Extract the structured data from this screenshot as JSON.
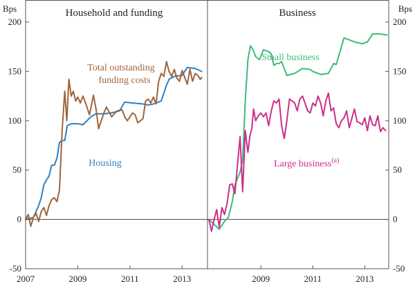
{
  "chart_data": {
    "type": "line",
    "y_unit": "Bps",
    "ylim": [
      -50,
      200
    ],
    "yticks": [
      -50,
      0,
      50,
      100,
      150,
      200
    ],
    "colors": {
      "housing": "#2e7fc4",
      "funding": "#a0643a",
      "small": "#3dbb7a",
      "large": "#cc2f8a",
      "zero": "#444444",
      "frame": "#555555"
    },
    "panels": [
      {
        "id": "left",
        "title": "Household and funding",
        "xlim": [
          2007.0,
          2013.92
        ],
        "xticks": [
          2007,
          2009,
          2011,
          2013
        ],
        "xtick_labels": [
          "2007",
          "2009",
          "2011",
          "2013"
        ],
        "series": [
          {
            "name": "Housing",
            "key": "housing",
            "label": "Housing",
            "x": [
              2007.0,
              2007.3,
              2007.4,
              2007.5,
              2007.6,
              2007.7,
              2007.8,
              2007.9,
              2008.0,
              2008.1,
              2008.2,
              2008.3,
              2008.4,
              2008.5,
              2008.6,
              2008.75,
              2009.0,
              2009.2,
              2009.5,
              2009.7,
              2010.0,
              2010.3,
              2010.6,
              2010.8,
              2011.1,
              2011.5,
              2011.7,
              2011.9,
              2012.2,
              2012.4,
              2012.5,
              2012.7,
              2013.0,
              2013.2,
              2013.5,
              2013.75
            ],
            "y": [
              0,
              2,
              8,
              14,
              22,
              35,
              40,
              44,
              55,
              55,
              62,
              78,
              80,
              80,
              95,
              97,
              97,
              96,
              104,
              107,
              107,
              108,
              110,
              119,
              118,
              117,
              116,
              117,
              120,
              136,
              142,
              145,
              146,
              154,
              153,
              150
            ]
          },
          {
            "name": "Total outstanding funding costs",
            "key": "funding",
            "label_lines": [
              "Total outstanding",
              "funding costs"
            ],
            "x": [
              2007.0,
              2007.1,
              2007.2,
              2007.3,
              2007.4,
              2007.5,
              2007.6,
              2007.7,
              2007.8,
              2007.9,
              2008.0,
              2008.1,
              2008.2,
              2008.3,
              2008.4,
              2008.5,
              2008.58,
              2008.66,
              2008.75,
              2008.83,
              2008.92,
              2009.0,
              2009.1,
              2009.2,
              2009.3,
              2009.45,
              2009.6,
              2009.7,
              2009.8,
              2009.9,
              2010.0,
              2010.1,
              2010.3,
              2010.5,
              2010.7,
              2010.8,
              2010.9,
              2011.0,
              2011.1,
              2011.2,
              2011.3,
              2011.5,
              2011.6,
              2011.7,
              2011.8,
              2011.9,
              2012.0,
              2012.1,
              2012.2,
              2012.3,
              2012.4,
              2012.5,
              2012.6,
              2012.7,
              2012.8,
              2012.9,
              2013.0,
              2013.1,
              2013.2,
              2013.3,
              2013.4,
              2013.5,
              2013.6,
              2013.7,
              2013.75
            ],
            "y": [
              0,
              5,
              -7,
              2,
              6,
              -2,
              8,
              12,
              4,
              14,
              20,
              22,
              18,
              30,
              90,
              130,
              100,
              142,
              125,
              130,
              120,
              124,
              118,
              125,
              118,
              106,
              126,
              112,
              92,
              100,
              108,
              114,
              104,
              110,
              111,
              104,
              100,
              104,
              108,
              106,
              98,
              102,
              120,
              122,
              118,
              124,
              117,
              140,
              148,
              145,
              160,
              150,
              145,
              152,
              143,
              140,
              151,
              144,
              137,
              152,
              140,
              148,
              146,
              142,
              144
            ]
          }
        ]
      },
      {
        "id": "right",
        "title": "Business",
        "xlim": [
          2007.0,
          2013.92
        ],
        "xticks": [
          2009,
          2011,
          2013
        ],
        "xtick_labels": [
          "2009",
          "2011",
          "2013"
        ],
        "series": [
          {
            "name": "Small business",
            "key": "small",
            "label": "Small business",
            "x": [
              2007.0,
              2007.2,
              2007.4,
              2007.6,
              2007.75,
              2007.9,
              2008.0,
              2008.2,
              2008.3,
              2008.4,
              2008.5,
              2008.6,
              2008.7,
              2008.8,
              2008.95,
              2009.1,
              2009.3,
              2009.4,
              2009.5,
              2009.6,
              2009.7,
              2009.8,
              2010.0,
              2010.3,
              2010.6,
              2010.9,
              2011.0,
              2011.3,
              2011.6,
              2011.8,
              2011.9,
              2012.2,
              2012.4,
              2012.6,
              2012.9,
              2013.1,
              2013.3,
              2013.6,
              2013.85
            ],
            "y": [
              0,
              -5,
              -10,
              -2,
              2,
              18,
              35,
              48,
              60,
              120,
              162,
              176,
              172,
              165,
              162,
              172,
              170,
              168,
              156,
              158,
              158,
              160,
              146,
              148,
              153,
              152,
              150,
              147,
              148,
              158,
              157,
              184,
              182,
              180,
              178,
              180,
              188,
              188,
              187
            ]
          },
          {
            "name": "Large business",
            "key": "large",
            "label": "Large business",
            "label_sup": "(a)",
            "x": [
              2007.0,
              2007.1,
              2007.2,
              2007.3,
              2007.4,
              2007.5,
              2007.6,
              2007.7,
              2007.8,
              2007.9,
              2008.0,
              2008.2,
              2008.3,
              2008.4,
              2008.5,
              2008.58,
              2008.65,
              2008.72,
              2008.8,
              2008.9,
              2009.0,
              2009.1,
              2009.2,
              2009.3,
              2009.4,
              2009.5,
              2009.6,
              2009.7,
              2009.8,
              2009.9,
              2010.0,
              2010.1,
              2010.2,
              2010.3,
              2010.4,
              2010.5,
              2010.6,
              2010.7,
              2010.8,
              2010.9,
              2011.0,
              2011.1,
              2011.2,
              2011.3,
              2011.4,
              2011.5,
              2011.6,
              2011.7,
              2011.8,
              2011.9,
              2012.0,
              2012.1,
              2012.2,
              2012.3,
              2012.4,
              2012.5,
              2012.6,
              2012.7,
              2012.8,
              2012.9,
              2013.0,
              2013.1,
              2013.2,
              2013.3,
              2013.4,
              2013.5,
              2013.6,
              2013.7,
              2013.8
            ],
            "y": [
              0,
              -12,
              0,
              10,
              -8,
              12,
              5,
              16,
              35,
              36,
              26,
              84,
              28,
              90,
              68,
              85,
              92,
              112,
              100,
              105,
              108,
              104,
              108,
              95,
              110,
              120,
              118,
              122,
              95,
              82,
              100,
              122,
              120,
              118,
              110,
              122,
              125,
              118,
              110,
              108,
              118,
              115,
              125,
              118,
              105,
              120,
              128,
              110,
              113,
              97,
              93,
              100,
              103,
              110,
              93,
              102,
              112,
              99,
              98,
              96,
              103,
              90,
              105,
              96,
              95,
              105,
              89,
              93,
              90
            ]
          }
        ]
      }
    ]
  }
}
